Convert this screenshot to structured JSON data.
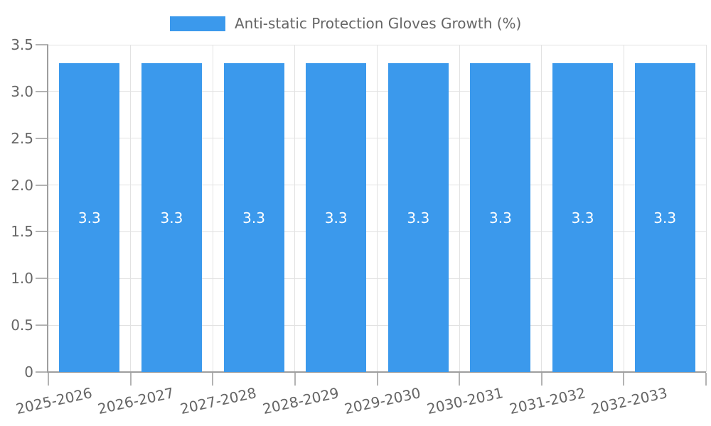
{
  "legend": {
    "label": "Anti-static Protection Gloves Growth (%)",
    "position": "top"
  },
  "chart_data": {
    "type": "bar",
    "title": "Anti-static Protection Gloves Growth (%)",
    "categories": [
      "2025-2026",
      "2026-2027",
      "2027-2028",
      "2028-2029",
      "2029-2030",
      "2030-2031",
      "2031-2032",
      "2032-2033"
    ],
    "values": [
      3.3,
      3.3,
      3.3,
      3.3,
      3.3,
      3.3,
      3.3,
      3.3
    ],
    "value_labels": [
      "3.3",
      "3.3",
      "3.3",
      "3.3",
      "3.3",
      "3.3",
      "3.3",
      "3.3"
    ],
    "xlabel": "",
    "ylabel": "",
    "ylim": [
      0,
      3.5
    ],
    "yticks": [
      {
        "label": "0",
        "value": 0
      },
      {
        "label": "0.5",
        "value": 0.5
      },
      {
        "label": "1.0",
        "value": 1
      },
      {
        "label": "1.5",
        "value": 1.5
      },
      {
        "label": "2.0",
        "value": 2
      },
      {
        "label": "2.5",
        "value": 2.5
      },
      {
        "label": "3.0",
        "value": 3
      },
      {
        "label": "3.5",
        "value": 3.5
      }
    ],
    "grid": true,
    "legend_position": "top",
    "x_label_rotation_deg": -12.5
  },
  "colors": {
    "bar": "#3B99EC",
    "grid": "#E2E2E2",
    "axis": "#9E9E9E",
    "tick": "#B3B3B3",
    "text": "#666666",
    "bar_label": "#FFFFFF",
    "background": "#FFFFFF"
  }
}
